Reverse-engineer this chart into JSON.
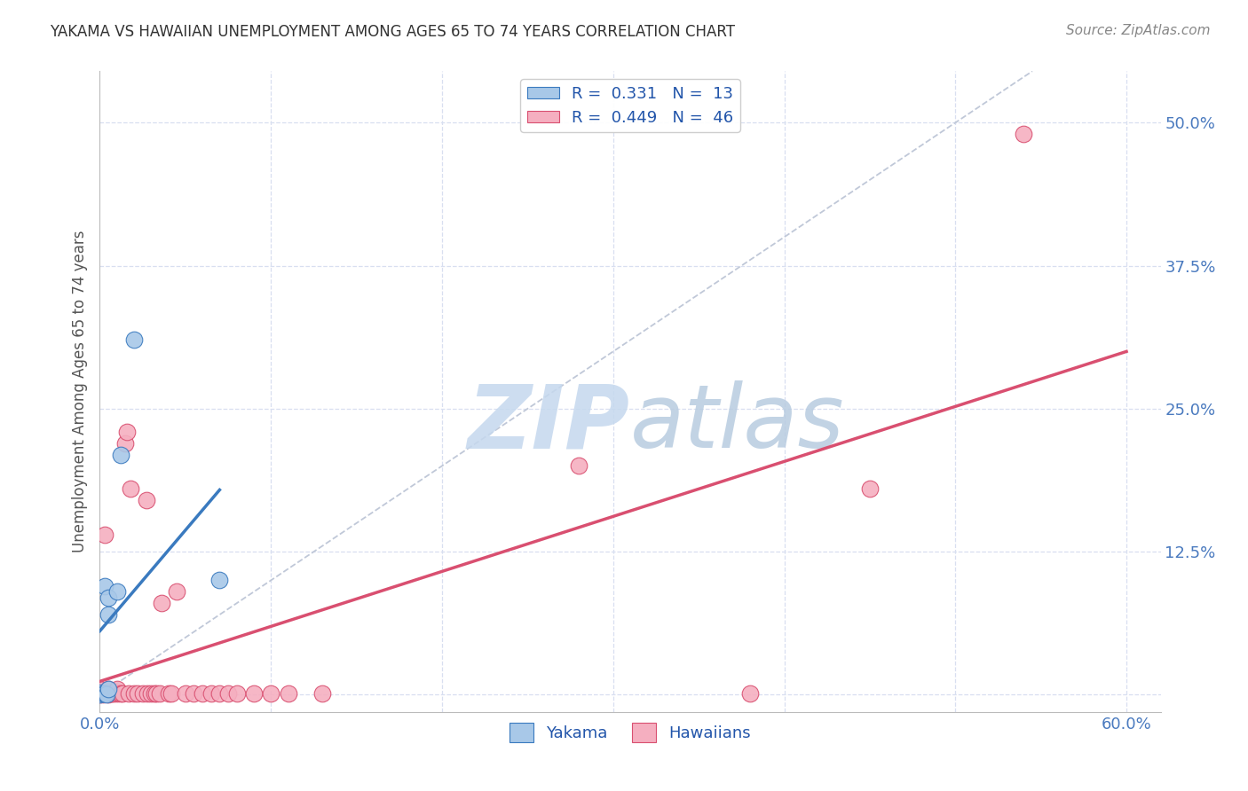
{
  "title": "YAKAMA VS HAWAIIAN UNEMPLOYMENT AMONG AGES 65 TO 74 YEARS CORRELATION CHART",
  "source": "Source: ZipAtlas.com",
  "ylabel": "Unemployment Among Ages 65 to 74 years",
  "xlim": [
    0.0,
    0.62
  ],
  "ylim": [
    -0.015,
    0.545
  ],
  "xticks": [
    0.0,
    0.1,
    0.2,
    0.3,
    0.4,
    0.5,
    0.6
  ],
  "xticklabels": [
    "0.0%",
    "",
    "",
    "",
    "",
    "",
    "60.0%"
  ],
  "yticks": [
    0.0,
    0.125,
    0.25,
    0.375,
    0.5
  ],
  "yticklabels": [
    "",
    "12.5%",
    "25.0%",
    "37.5%",
    "50.0%"
  ],
  "legend_r_yakama": "0.331",
  "legend_n_yakama": "13",
  "legend_r_hawaiian": "0.449",
  "legend_n_hawaiian": "46",
  "yakama_color": "#a8c8e8",
  "hawaiian_color": "#f5afc0",
  "trendline_yakama_color": "#3a7abf",
  "trendline_hawaiian_color": "#d94f70",
  "dashed_line_color": "#c0c8d8",
  "yakama_x": [
    0.0,
    0.0,
    0.002,
    0.003,
    0.003,
    0.004,
    0.005,
    0.005,
    0.005,
    0.01,
    0.012,
    0.02,
    0.07
  ],
  "yakama_y": [
    0.0,
    0.002,
    0.001,
    0.001,
    0.095,
    0.0,
    0.005,
    0.07,
    0.085,
    0.09,
    0.21,
    0.31,
    0.1
  ],
  "hawaiian_x": [
    0.0,
    0.0,
    0.0,
    0.002,
    0.003,
    0.005,
    0.005,
    0.007,
    0.008,
    0.01,
    0.01,
    0.01,
    0.012,
    0.013,
    0.015,
    0.016,
    0.017,
    0.018,
    0.02,
    0.022,
    0.025,
    0.027,
    0.028,
    0.03,
    0.032,
    0.033,
    0.035,
    0.036,
    0.04,
    0.042,
    0.045,
    0.05,
    0.055,
    0.06,
    0.065,
    0.07,
    0.075,
    0.08,
    0.09,
    0.1,
    0.11,
    0.13,
    0.28,
    0.38,
    0.45,
    0.54
  ],
  "hawaiian_y": [
    0.0,
    0.002,
    0.005,
    0.0,
    0.14,
    0.0,
    0.005,
    0.001,
    0.001,
    0.001,
    0.002,
    0.005,
    0.001,
    0.001,
    0.22,
    0.23,
    0.001,
    0.18,
    0.001,
    0.001,
    0.001,
    0.17,
    0.001,
    0.001,
    0.001,
    0.001,
    0.001,
    0.08,
    0.001,
    0.001,
    0.09,
    0.001,
    0.001,
    0.001,
    0.001,
    0.001,
    0.001,
    0.001,
    0.001,
    0.001,
    0.001,
    0.001,
    0.2,
    0.001,
    0.18,
    0.49
  ],
  "background_color": "#ffffff",
  "grid_color": "#d8dff0"
}
